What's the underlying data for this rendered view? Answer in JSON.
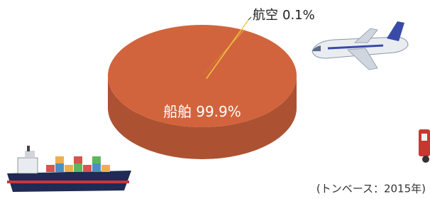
{
  "chart_data": {
    "type": "pie",
    "categories": [
      "航空",
      "船舶"
    ],
    "values": [
      0.1,
      99.9
    ],
    "value_labels": [
      "0.1%",
      "99.9%"
    ],
    "colors": [
      "#f0c93c",
      "#d2643d"
    ],
    "note": "(トンベース：2015年)"
  }
}
